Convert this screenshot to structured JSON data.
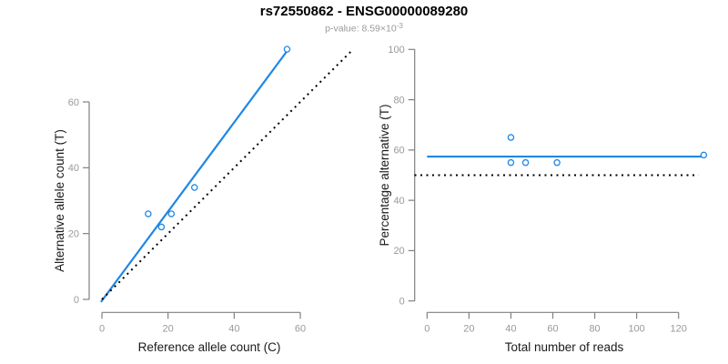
{
  "page": {
    "title": "rs72550862 - ENSG00000089280",
    "subtitle_prefix": "p-value: 8.59×10",
    "subtitle_exponent": "-3"
  },
  "colors": {
    "accent_blue": "#1E87E5",
    "reference_black": "#000000",
    "axis_line": "#808080",
    "tick_label": "#999999",
    "axis_title": "#1a1a1a"
  },
  "chart_data": [
    {
      "type": "scatter",
      "name": "allele-counts-scatter",
      "xlabel": "Reference allele count (C)",
      "ylabel": "Alternative allele count (T)",
      "xticks": [
        0,
        20,
        40,
        60
      ],
      "yticks": [
        0,
        20,
        40,
        60
      ],
      "xlim": [
        0,
        76
      ],
      "ylim": [
        -1,
        78
      ],
      "grid": false,
      "points": [
        [
          14,
          26
        ],
        [
          18,
          22
        ],
        [
          21,
          26
        ],
        [
          28,
          34
        ],
        [
          56,
          76
        ]
      ],
      "lines": [
        {
          "name": "fit-line",
          "x1": -0.3,
          "y1": -0.8,
          "x2": 56.4,
          "y2": 76,
          "style": "solid",
          "color_key": "accent_blue",
          "width": 2.2
        },
        {
          "name": "identity-line",
          "x1": 0,
          "y1": 0,
          "x2": 76,
          "y2": 76,
          "style": "dotted",
          "color_key": "reference_black",
          "width": 2
        }
      ]
    },
    {
      "type": "scatter",
      "name": "percentage-vs-coverage-scatter",
      "xlabel": "Total number of reads",
      "ylabel": "Percentage alternative (T)",
      "xticks": [
        0,
        20,
        40,
        60,
        80,
        100,
        120
      ],
      "yticks": [
        0,
        20,
        40,
        60,
        80,
        100
      ],
      "xlim": [
        0,
        133
      ],
      "ylim": [
        0,
        100
      ],
      "grid": false,
      "points": [
        [
          40,
          65
        ],
        [
          40,
          55
        ],
        [
          47,
          55
        ],
        [
          62,
          55
        ],
        [
          132,
          58
        ]
      ],
      "lines": [
        {
          "name": "fit-line",
          "x1": 0,
          "y1": 57.4,
          "x2": 132,
          "y2": 57.4,
          "style": "solid",
          "color_key": "accent_blue",
          "width": 2.2
        },
        {
          "name": "reference-line",
          "x1": -6,
          "y1": 50,
          "x2": 129.5,
          "y2": 50,
          "style": "dotted",
          "color_key": "reference_black",
          "width": 2
        }
      ]
    }
  ]
}
